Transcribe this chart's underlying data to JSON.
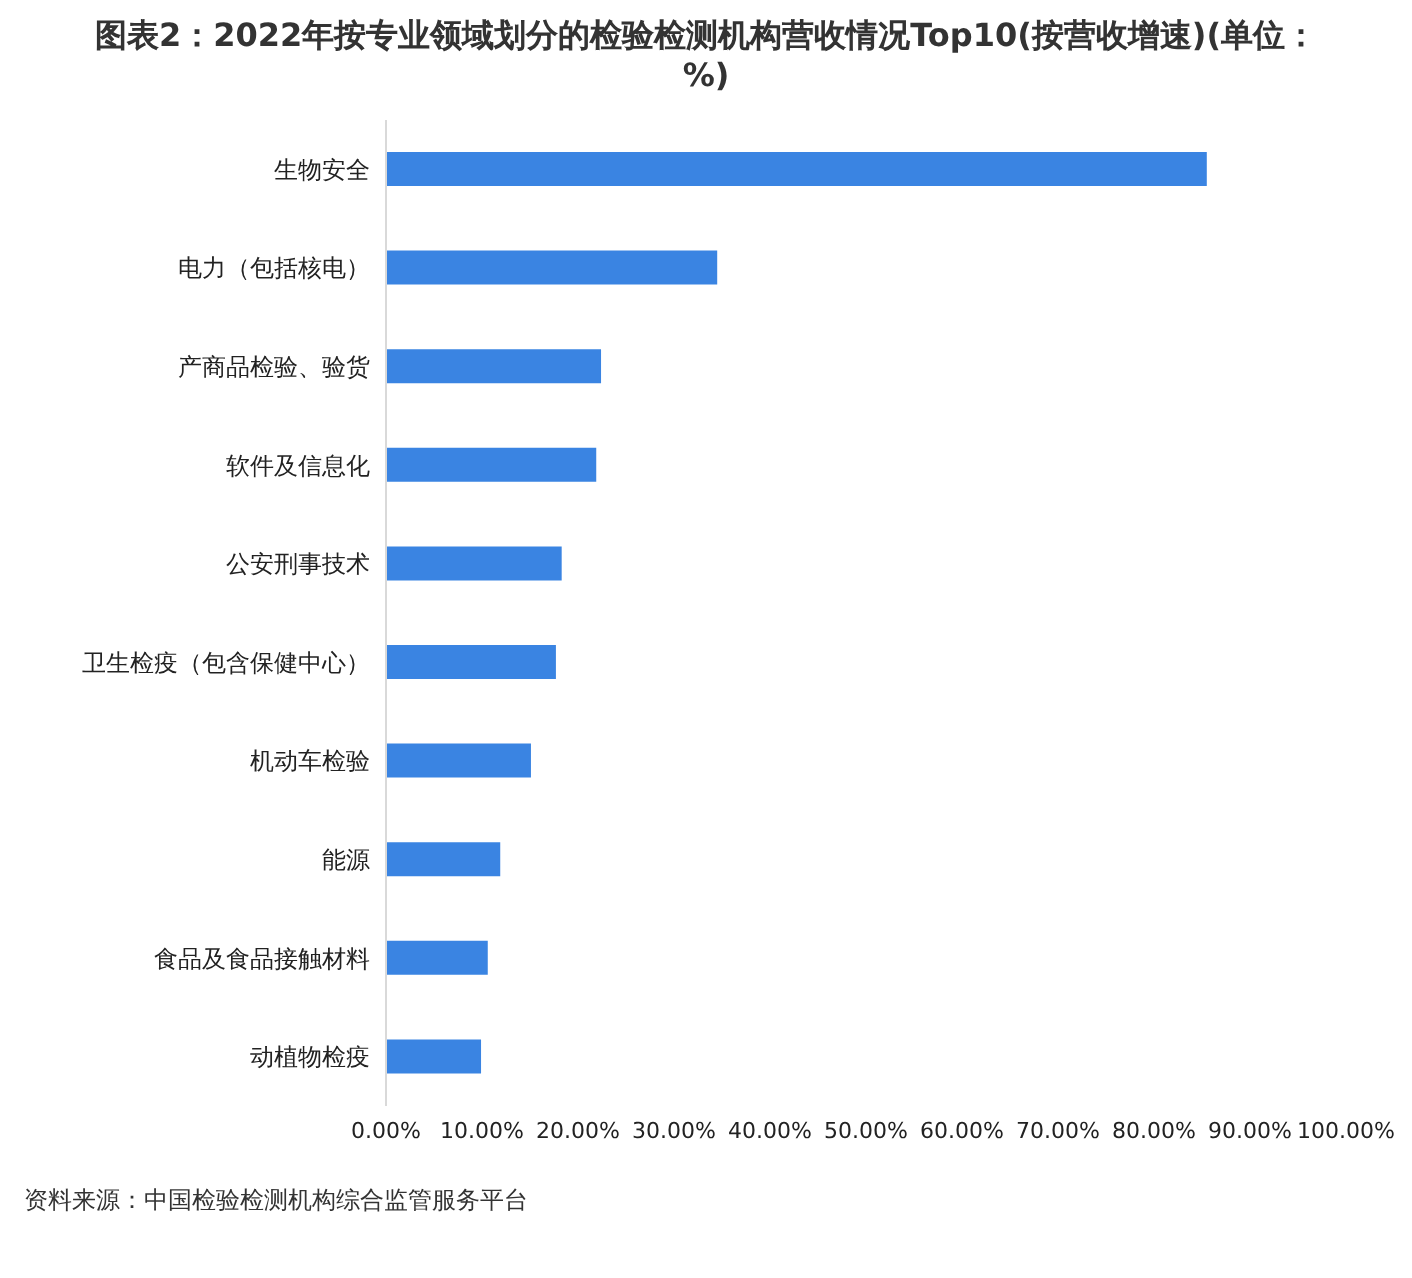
{
  "chart_data": {
    "type": "bar",
    "orientation": "horizontal",
    "title": "图表2：2022年按专业领域划分的检验检测机构营收情况Top10(按营收增速)(单位：%)",
    "categories": [
      "生物安全",
      "电力（包括核电）",
      "产商品检验、验货",
      "软件及信息化",
      "公安刑事技术",
      "卫生检疫（包含保健中心）",
      "机动车检验",
      "能源",
      "食品及食品接触材料",
      "动植物检疫"
    ],
    "values": [
      85.5,
      34.5,
      22.4,
      21.9,
      18.3,
      17.7,
      15.1,
      11.9,
      10.6,
      9.9
    ],
    "color": "#3a84e2",
    "xlim": [
      0,
      100
    ],
    "xticks": [
      {
        "value": 0,
        "label": "0.00%"
      },
      {
        "value": 10,
        "label": "10.00%"
      },
      {
        "value": 20,
        "label": "20.00%"
      },
      {
        "value": 30,
        "label": "30.00%"
      },
      {
        "value": 40,
        "label": "40.00%"
      },
      {
        "value": 50,
        "label": "50.00%"
      },
      {
        "value": 60,
        "label": "60.00%"
      },
      {
        "value": 70,
        "label": "70.00%"
      },
      {
        "value": 80,
        "label": "80.00%"
      },
      {
        "value": 90,
        "label": "90.00%"
      },
      {
        "value": 100,
        "label": "100.00%"
      }
    ],
    "grid": false,
    "legend": false,
    "annotations": [
      "资料来源：中国检验检测机构综合监管服务平台"
    ]
  }
}
